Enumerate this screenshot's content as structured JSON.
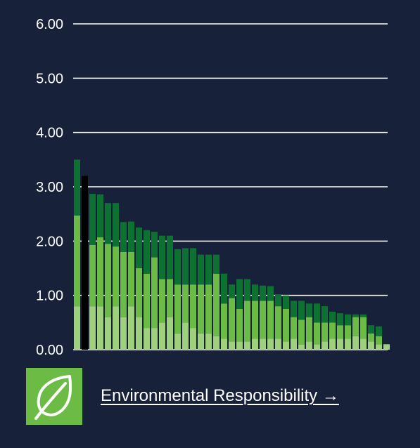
{
  "colors": {
    "background": "#18213a",
    "dark_green": "#0d7131",
    "mid_green": "#6cbb45",
    "light_green": "#9fd07c",
    "highlight": "#000000",
    "grid": "#ffffff"
  },
  "chart_data": {
    "type": "bar",
    "stacked": true,
    "ylim": [
      0,
      6
    ],
    "yticks": [
      "0.00",
      "1.00",
      "2.00",
      "3.00",
      "4.00",
      "5.00",
      "6.00"
    ],
    "ytick_values": [
      0,
      1,
      2,
      3,
      4,
      5,
      6
    ],
    "grid": true,
    "highlight_index": 1,
    "highlight_total": 3.2,
    "series": [
      {
        "name": "",
        "color": "#9fd07c",
        "values": [
          0.8,
          0,
          0.8,
          0.8,
          0.6,
          0.8,
          0.6,
          0.8,
          0.6,
          0.4,
          0.4,
          0.5,
          0.6,
          0.3,
          0.5,
          0.4,
          0.3,
          0.3,
          0.25,
          0.2,
          0.15,
          0.15,
          0.15,
          0.2,
          0.2,
          0.2,
          0.2,
          0.15,
          0.2,
          0.1,
          0.15,
          0.1,
          0.15,
          0.2,
          0.2,
          0.2,
          0.25,
          0.2,
          0.15,
          0.1,
          0.1
        ]
      },
      {
        "name": "",
        "color": "#6cbb45",
        "values": [
          1.67,
          0,
          1.13,
          1.27,
          1.35,
          1.1,
          1.2,
          1.0,
          0.9,
          1.0,
          1.3,
          0.8,
          0.7,
          0.9,
          0.7,
          0.8,
          0.9,
          0.9,
          1.15,
          0.65,
          0.8,
          0.6,
          0.75,
          0.7,
          0.7,
          0.7,
          0.6,
          0.6,
          0.4,
          0.45,
          0.45,
          0.4,
          0.35,
          0.3,
          0.25,
          0.25,
          0.35,
          0.4,
          0.15,
          0.15,
          0
        ]
      },
      {
        "name": "",
        "color": "#0d7131",
        "values": [
          1.03,
          3.2,
          0.94,
          0.79,
          0.75,
          0.8,
          0.55,
          0.56,
          0.75,
          0.8,
          0.47,
          0.8,
          0.8,
          0.65,
          0.67,
          0.67,
          0.55,
          0.55,
          0.35,
          0.55,
          0.25,
          0.55,
          0.4,
          0.3,
          0.28,
          0.27,
          0.22,
          0.25,
          0.3,
          0.35,
          0.25,
          0.35,
          0.3,
          0.2,
          0.22,
          0.2,
          0.05,
          0.05,
          0.15,
          0.18,
          0
        ]
      }
    ]
  },
  "footer": {
    "icon": "leaf-icon",
    "link_text": "Environmental Responsibility →"
  }
}
